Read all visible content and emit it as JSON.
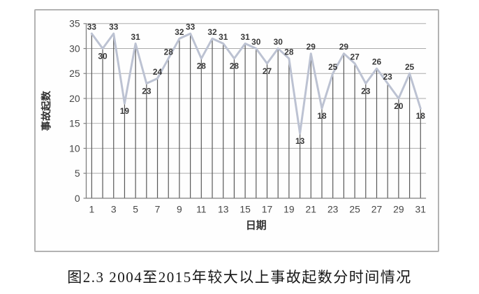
{
  "caption": "图2.3 2004至2015年较大以上事故起数分时间情况",
  "chart_data": {
    "type": "line",
    "x": [
      1,
      2,
      3,
      4,
      5,
      6,
      7,
      8,
      9,
      10,
      11,
      12,
      13,
      14,
      15,
      16,
      17,
      18,
      19,
      20,
      21,
      22,
      23,
      24,
      25,
      26,
      27,
      28,
      29,
      30,
      31
    ],
    "values": [
      33,
      30,
      33,
      19,
      31,
      23,
      24,
      28,
      32,
      33,
      28,
      32,
      31,
      28,
      31,
      30,
      27,
      30,
      28,
      13,
      29,
      18,
      25,
      29,
      27,
      23,
      26,
      23,
      20,
      25,
      18
    ],
    "title": "",
    "xlabel": "日期",
    "ylabel": "事故起数",
    "ylim": [
      0,
      35
    ],
    "ytick_step": 5,
    "ytick_labels": [
      "0",
      "5",
      "10",
      "15",
      "20",
      "25",
      "30",
      "35"
    ],
    "xtick_labels": [
      "1",
      "3",
      "5",
      "7",
      "9",
      "11",
      "13",
      "15",
      "17",
      "19",
      "21",
      "23",
      "25",
      "27",
      "29",
      "31"
    ],
    "grid": "horizontal gridlines every 5 units",
    "drop_lines": true,
    "data_labels": true,
    "legend": "none",
    "colors": {
      "series_line": "#bcc2d2",
      "drop_line": "#575757",
      "gridline": "#ababab",
      "axis_line": "#7f7f7f",
      "data_label": "#383838",
      "tick_label": "#474747",
      "axis_title": "#303030"
    }
  }
}
